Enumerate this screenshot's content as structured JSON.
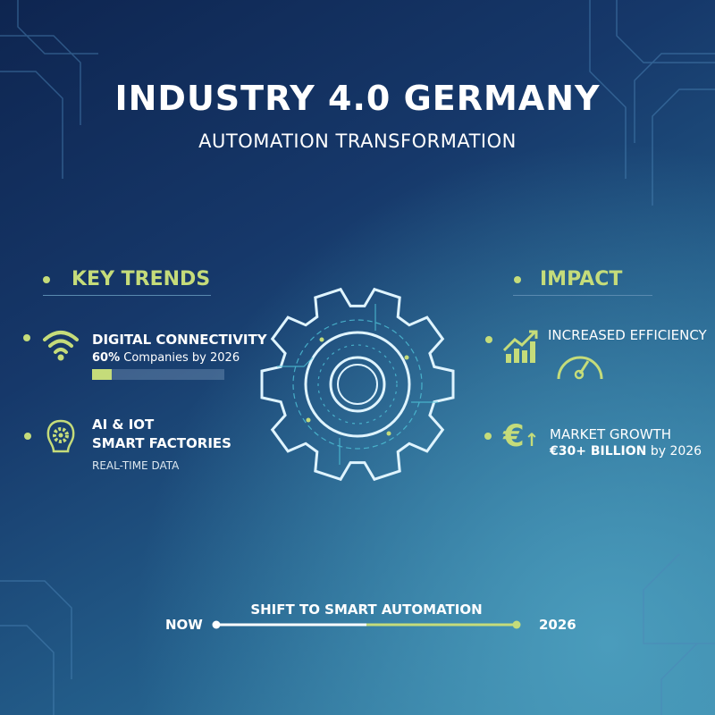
{
  "header": {
    "title": "INDUSTRY 4.0 GERMANY",
    "subtitle": "AUTOMATION TRANSFORMATION"
  },
  "colors": {
    "accent": "#c5dc7a",
    "background_dark": "#0e2550",
    "background_light": "#3a88aa",
    "gear": "#4fc3d8"
  },
  "key_trends": {
    "title": "KEY TRENDS",
    "items": [
      {
        "icon": "wifi-icon",
        "title": "DIGITAL CONNECTIVITY",
        "stat_bold": "60%",
        "stat_rest": " Companies by 2026",
        "progress_fraction": 0.15
      },
      {
        "icon": "brain-gear-icon",
        "title_line1": "AI & IOT",
        "title_line2": "SMART FACTORIES",
        "subtitle": "REAL-TIME DATA"
      }
    ]
  },
  "impact": {
    "title": "IMPACT",
    "items": [
      {
        "icon": "growth-chart-icon",
        "title": "INCREASED EFFICIENCY",
        "sub_icon": "speedometer-icon"
      },
      {
        "icon": "euro-up-icon",
        "title": "MARKET GROWTH",
        "stat_bold": "€30+ BILLION",
        "stat_rest": " by 2026"
      }
    ]
  },
  "timeline": {
    "label": "SHIFT TO SMART AUTOMATION",
    "start": "NOW",
    "end": "2026",
    "progress_fraction": 0.5
  }
}
